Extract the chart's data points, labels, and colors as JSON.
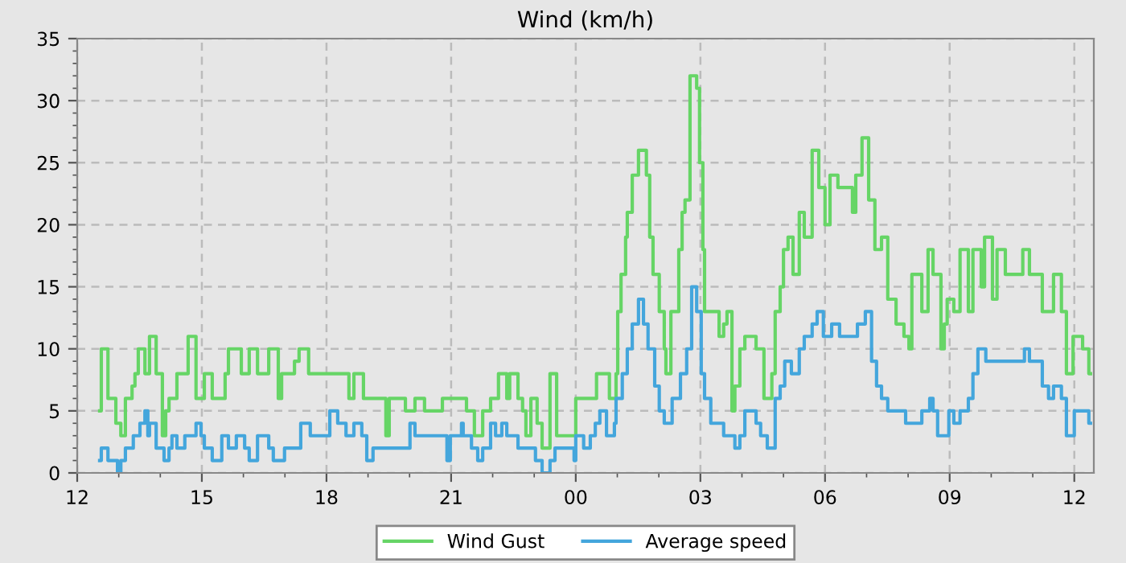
{
  "chart_data": {
    "type": "step",
    "title": "Wind (km/h)",
    "xlim": [
      12,
      36.47
    ],
    "ylim": [
      0,
      35
    ],
    "xticks": [
      {
        "value": 12,
        "label": "12"
      },
      {
        "value": 15,
        "label": "15"
      },
      {
        "value": 18,
        "label": "18"
      },
      {
        "value": 21,
        "label": "21"
      },
      {
        "value": 24,
        "label": "00"
      },
      {
        "value": 27,
        "label": "03"
      },
      {
        "value": 30,
        "label": "06"
      },
      {
        "value": 33,
        "label": "09"
      },
      {
        "value": 36,
        "label": "12"
      }
    ],
    "yticks": [
      0,
      5,
      10,
      15,
      20,
      25,
      30,
      35
    ],
    "grid": true,
    "legend": "bottom",
    "line_style": "solid",
    "series": [
      {
        "name": "Wind Gust",
        "color": "#66d566",
        "x": [
          12.54,
          12.58,
          12.74,
          12.93,
          13.05,
          13.16,
          13.32,
          13.39,
          13.47,
          13.63,
          13.74,
          13.9,
          14.05,
          14.13,
          14.21,
          14.4,
          14.67,
          14.86,
          15.06,
          15.25,
          15.56,
          15.64,
          15.95,
          16.14,
          16.34,
          16.61,
          16.84,
          16.92,
          17.23,
          17.34,
          17.57,
          18.54,
          18.66,
          18.89,
          19.43,
          19.51,
          19.9,
          20.13,
          20.36,
          20.79,
          21.37,
          21.56,
          21.76,
          21.95,
          22.14,
          22.34,
          22.41,
          22.61,
          22.72,
          22.8,
          22.92,
          23.07,
          23.19,
          23.38,
          23.54,
          24.0,
          24.5,
          24.81,
          24.97,
          25.01,
          25.09,
          25.2,
          25.24,
          25.36,
          25.51,
          25.7,
          25.78,
          25.86,
          26.01,
          26.13,
          26.17,
          26.29,
          26.48,
          26.56,
          26.63,
          26.75,
          26.91,
          26.98,
          27.06,
          27.1,
          27.45,
          27.56,
          27.64,
          27.76,
          27.83,
          27.95,
          28.07,
          28.34,
          28.53,
          28.72,
          28.8,
          28.92,
          29.0,
          29.11,
          29.23,
          29.38,
          29.5,
          29.69,
          29.85,
          30.0,
          30.12,
          30.31,
          30.66,
          30.74,
          30.89,
          31.05,
          31.2,
          31.36,
          31.51,
          31.71,
          31.9,
          32.02,
          32.09,
          32.33,
          32.48,
          32.6,
          32.79,
          32.87,
          32.94,
          33.1,
          33.25,
          33.45,
          33.56,
          33.76,
          33.84,
          34.03,
          34.14,
          34.34,
          34.76,
          34.92,
          35.23,
          35.38,
          35.5,
          35.69,
          35.81,
          35.97,
          36.2,
          36.35,
          36.39
        ],
        "values": [
          5,
          10,
          6,
          4,
          3,
          6,
          7,
          8,
          10,
          8,
          11,
          8,
          3,
          5,
          6,
          8,
          11,
          6,
          8,
          6,
          8,
          10,
          8,
          10,
          8,
          10,
          6,
          8,
          9,
          10,
          8,
          6,
          8,
          6,
          3,
          6,
          5,
          6,
          5,
          6,
          5,
          3,
          5,
          6,
          8,
          6,
          8,
          6,
          5,
          3,
          6,
          4,
          2,
          8,
          3,
          6,
          8,
          6,
          8,
          13,
          16,
          19,
          21,
          24,
          26,
          24,
          19,
          16,
          13,
          10,
          8,
          13,
          18,
          21,
          22,
          32,
          31,
          25,
          18,
          13,
          11,
          12,
          13,
          5,
          7,
          10,
          11,
          10,
          6,
          8,
          13,
          15,
          18,
          19,
          16,
          21,
          19,
          26,
          23,
          20,
          24,
          23,
          21,
          24,
          27,
          22,
          18,
          19,
          14,
          12,
          11,
          10,
          16,
          13,
          18,
          16,
          10,
          12,
          14,
          13,
          18,
          13,
          18,
          15,
          19,
          14,
          18,
          16,
          18,
          16,
          13,
          13,
          16,
          13,
          8,
          11,
          10,
          8,
          8
        ]
      },
      {
        "name": "Average speed",
        "color": "#44a6dc",
        "x": [
          12.54,
          12.58,
          12.74,
          12.97,
          13.05,
          13.16,
          13.35,
          13.51,
          13.63,
          13.7,
          13.74,
          13.9,
          14.09,
          14.21,
          14.28,
          14.4,
          14.59,
          14.86,
          14.98,
          15.06,
          15.25,
          15.48,
          15.64,
          15.83,
          16.03,
          16.14,
          16.34,
          16.61,
          16.72,
          16.99,
          17.38,
          17.61,
          18.08,
          18.27,
          18.47,
          18.66,
          18.85,
          18.97,
          19.12,
          20.01,
          20.13,
          20.9,
          20.98,
          21.25,
          21.29,
          21.49,
          21.64,
          21.76,
          21.95,
          22.07,
          22.22,
          22.34,
          22.61,
          23.03,
          23.19,
          23.38,
          23.5,
          23.96,
          24.0,
          24.19,
          24.35,
          24.47,
          24.58,
          24.74,
          24.93,
          24.97,
          25.12,
          25.24,
          25.36,
          25.51,
          25.63,
          25.74,
          25.9,
          26.01,
          26.13,
          26.32,
          26.52,
          26.67,
          26.79,
          26.91,
          27.02,
          27.1,
          27.25,
          27.56,
          27.83,
          27.95,
          28.07,
          28.34,
          28.45,
          28.61,
          28.8,
          28.92,
          29.03,
          29.19,
          29.38,
          29.5,
          29.69,
          29.81,
          29.96,
          30.16,
          30.35,
          30.78,
          30.97,
          31.12,
          31.24,
          31.36,
          31.51,
          31.94,
          32.33,
          32.52,
          32.6,
          32.71,
          32.98,
          33.1,
          33.25,
          33.45,
          33.56,
          33.68,
          33.87,
          34.8,
          34.92,
          35.23,
          35.38,
          35.5,
          35.69,
          35.81,
          36.0,
          36.35,
          36.39
        ],
        "values": [
          1,
          2,
          1,
          0,
          1,
          2,
          3,
          4,
          5,
          3,
          4,
          2,
          1,
          2,
          3,
          2,
          3,
          4,
          3,
          2,
          1,
          3,
          2,
          3,
          2,
          1,
          3,
          2,
          1,
          2,
          4,
          3,
          5,
          4,
          3,
          4,
          3,
          1,
          2,
          4,
          3,
          1,
          3,
          4,
          3,
          2,
          1,
          2,
          4,
          3,
          4,
          3,
          2,
          1,
          0,
          1,
          2,
          1,
          3,
          2,
          3,
          4,
          5,
          3,
          4,
          6,
          8,
          10,
          12,
          14,
          12,
          10,
          7,
          5,
          4,
          6,
          8,
          10,
          15,
          13,
          8,
          6,
          4,
          3,
          2,
          3,
          5,
          4,
          3,
          2,
          6,
          7,
          9,
          8,
          10,
          11,
          12,
          13,
          11,
          12,
          11,
          12,
          13,
          9,
          7,
          6,
          5,
          4,
          5,
          6,
          5,
          3,
          5,
          4,
          5,
          6,
          8,
          10,
          9,
          10,
          9,
          7,
          6,
          7,
          6,
          3,
          5,
          4,
          4
        ]
      }
    ]
  }
}
